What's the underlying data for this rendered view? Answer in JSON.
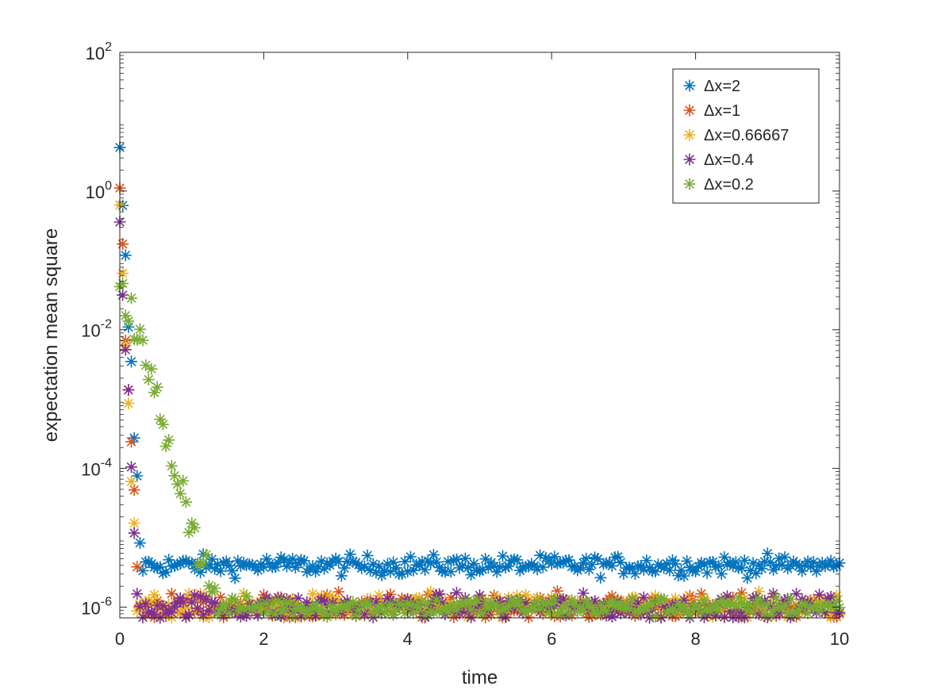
{
  "chart_data": {
    "type": "scatter",
    "xlabel": "time",
    "ylabel": "expectation mean square",
    "xlim": [
      0,
      10
    ],
    "ylim": [
      7e-07,
      100
    ],
    "yscale": "log",
    "x_ticks": [
      0,
      2,
      4,
      6,
      8,
      10
    ],
    "x_tick_labels": [
      "0",
      "2",
      "4",
      "6",
      "8",
      "10"
    ],
    "y_ticks": [
      1e-06,
      0.0001,
      0.01,
      1,
      100
    ],
    "y_tick_labels": [
      {
        "base": "10",
        "exp": "-6"
      },
      {
        "base": "10",
        "exp": "-4"
      },
      {
        "base": "10",
        "exp": "-2"
      },
      {
        "base": "10",
        "exp": "0"
      },
      {
        "base": "10",
        "exp": "2"
      }
    ],
    "grid": false,
    "legend_position": "top-right",
    "marker": "asterisk",
    "x_step": 0.04,
    "series": [
      {
        "name": "Δx=2",
        "color": "#0072BD",
        "start": 2.8,
        "rate": 45,
        "floor": 4e-06,
        "noise": 0.07
      },
      {
        "name": "Δx=1",
        "color": "#D95319",
        "start": 0.9,
        "rate": 52,
        "floor": 1e-06,
        "noise": 0.09
      },
      {
        "name": "Δx=0.66667",
        "color": "#EDB120",
        "start": 0.9,
        "rate": 58,
        "floor": 1e-06,
        "noise": 0.09
      },
      {
        "name": "Δx=0.4",
        "color": "#7E2F8E",
        "start": 0.28,
        "rate": 50,
        "floor": 1e-06,
        "noise": 0.09
      },
      {
        "name": "Δx=0.2",
        "color": "#77AC30",
        "start": 0.06,
        "rate": 8.2,
        "floor": 1e-06,
        "noise": 0.07
      }
    ]
  }
}
